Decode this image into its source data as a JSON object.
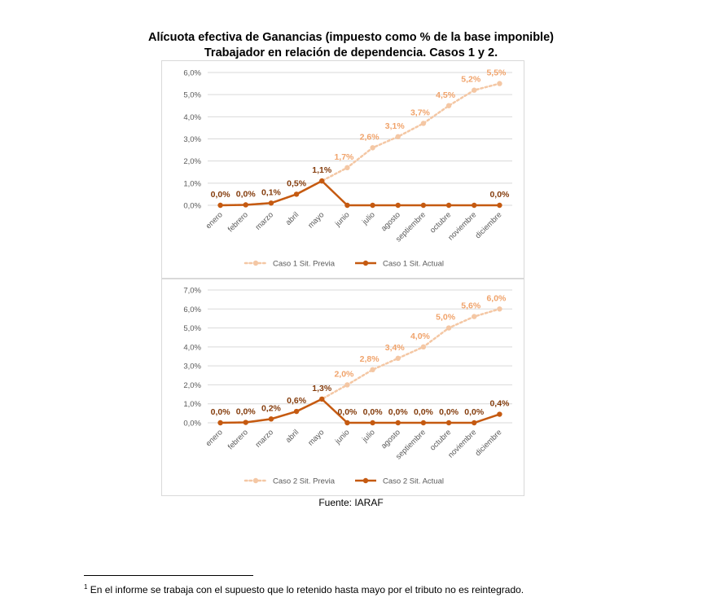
{
  "title_line1": "Alícuota efectiva de Ganancias (impuesto como % de la base imponible)",
  "title_line2": "Trabajador en relación de dependencia. Casos 1 y 2.",
  "source": "Fuente: IARAF",
  "footnote_mark": "1",
  "footnote_text": "En el informe se trabaja con el supuesto que lo retenido hasta mayo por el tributo no es reintegrado.",
  "colors": {
    "previa": "#f4c7a4",
    "previa_label": "#f0a36b",
    "actual": "#c55a11",
    "actual_label": "#843c0c",
    "grid": "#d9d9d9"
  },
  "chart_data": [
    {
      "type": "line",
      "categories": [
        "enero",
        "febrero",
        "marzo",
        "abril",
        "mayo",
        "junio",
        "julio",
        "agosto",
        "septiembre",
        "octubre",
        "noviembre",
        "diciembre"
      ],
      "ylim": [
        0,
        6
      ],
      "yticks": [
        "0,0%",
        "1,0%",
        "2,0%",
        "3,0%",
        "4,0%",
        "5,0%",
        "6,0%"
      ],
      "grid": true,
      "legend": "bottom",
      "series": [
        {
          "name": "Caso 1 Sit. Previa",
          "values": [
            0,
            0.02,
            0.1,
            0.5,
            1.1,
            1.7,
            2.6,
            3.1,
            3.7,
            4.5,
            5.2,
            5.5
          ],
          "labels": [
            "",
            "",
            "",
            "",
            "",
            "1,7%",
            "2,6%",
            "3,1%",
            "3,7%",
            "4,5%",
            "5,2%",
            "5,5%"
          ]
        },
        {
          "name": "Caso 1 Sit. Actual",
          "values": [
            0,
            0.02,
            0.1,
            0.5,
            1.1,
            0,
            0,
            0,
            0,
            0,
            0,
            0
          ],
          "labels": [
            "0,0%",
            "0,0%",
            "0,1%",
            "0,5%",
            "1,1%",
            "",
            "",
            "",
            "",
            "",
            "",
            "0,0%"
          ]
        }
      ]
    },
    {
      "type": "line",
      "categories": [
        "enero",
        "febrero",
        "marzo",
        "abril",
        "mayo",
        "junio",
        "julio",
        "agosto",
        "septiembre",
        "octubre",
        "noviembre",
        "diciembre"
      ],
      "ylim": [
        0,
        7
      ],
      "yticks": [
        "0,0%",
        "1,0%",
        "2,0%",
        "3,0%",
        "4,0%",
        "5,0%",
        "6,0%",
        "7,0%"
      ],
      "grid": true,
      "legend": "bottom",
      "series": [
        {
          "name": "Caso 2 Sit. Previa",
          "values": [
            0,
            0.02,
            0.2,
            0.6,
            1.25,
            2.0,
            2.8,
            3.4,
            4.0,
            5.0,
            5.6,
            6.0
          ],
          "labels": [
            "",
            "",
            "",
            "",
            "",
            "2,0%",
            "2,8%",
            "3,4%",
            "4,0%",
            "5,0%",
            "5,6%",
            "6,0%"
          ]
        },
        {
          "name": "Caso 2 Sit. Actual",
          "values": [
            0,
            0.02,
            0.2,
            0.6,
            1.25,
            0,
            0,
            0,
            0,
            0,
            0,
            0.45
          ],
          "labels": [
            "0,0%",
            "0,0%",
            "0,2%",
            "0,6%",
            "1,3%",
            "0,0%",
            "0,0%",
            "0,0%",
            "0,0%",
            "0,0%",
            "0,0%",
            "0,4%"
          ]
        }
      ]
    }
  ]
}
